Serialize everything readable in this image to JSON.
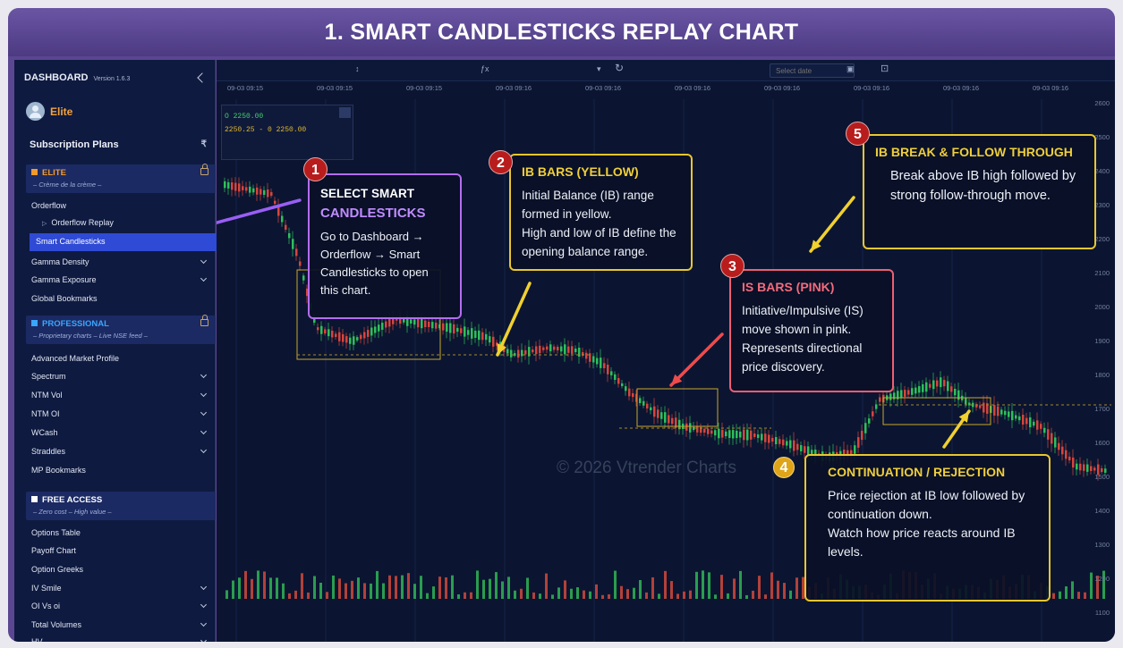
{
  "banner": {
    "title": "1. SMART CANDLESTICKS REPLAY CHART"
  },
  "sidebar": {
    "title": "DASHBOARD",
    "version": "Version 1.6.3",
    "user": "Elite",
    "subscription": "Subscription Plans",
    "sections": [
      {
        "title": "ELITE",
        "subtitle": "– Crème de la crème –",
        "color": "#f39a2b"
      },
      {
        "title": "PROFESSIONAL",
        "subtitle": "– Proprietary charts – Live NSE feed –",
        "color": "#3aa6ff"
      },
      {
        "title": "FREE ACCESS",
        "subtitle": "– Zero cost – High value –",
        "color": "#ffffff"
      }
    ],
    "elite_items": [
      "Orderflow",
      "Orderflow Replay",
      "Smart Candlesticks",
      "Gamma Density",
      "Gamma Exposure",
      "Global Bookmarks"
    ],
    "pro_items": [
      "Advanced Market Profile",
      "Spectrum",
      "NTM Vol",
      "NTM OI",
      "WCash",
      "Straddles",
      "MP Bookmarks"
    ],
    "free_items": [
      "Options Table",
      "Payoff Chart",
      "Option Greeks",
      "IV Smile",
      "OI Vs oi",
      "Total Volumes",
      "HV"
    ]
  },
  "toolbar": {
    "date_placeholder": "Select date"
  },
  "time_axis": [
    "09-03 09:15",
    "09-03 09:15",
    "09-03 09:15",
    "09-03 09:16",
    "09-03 09:16",
    "09-03 09:16",
    "09-03 09:16",
    "09-03 09:16",
    "09-03 09:16",
    "09-03 09:16"
  ],
  "price_axis": [
    "2600",
    "2500",
    "2400",
    "2300",
    "2200",
    "2100",
    "2000",
    "1900",
    "1800",
    "1700",
    "1600",
    "1500",
    "1400",
    "1300",
    "1200",
    "1100"
  ],
  "legend": {
    "line1": "O 2250.00",
    "line2": "2250.25 - 0 2250.00"
  },
  "watermark": "© 2026 Vtrender Charts",
  "callouts": [
    {
      "num": "1",
      "title_line1": "SELECT SMART",
      "title_line2": "CANDLESTICKS",
      "body": "Go to Dashboard → Orderflow → Smart Candlesticks to open this chart.",
      "color": "#b46df0"
    },
    {
      "num": "2",
      "title": "IB BARS (YELLOW)",
      "body": "Initial Balance (IB) range formed in yellow.\nHigh and low of IB define the opening balance range.",
      "color": "#e9c62e"
    },
    {
      "num": "3",
      "title": "IS BARS (PINK)",
      "body": "Initiative/Impulsive (IS) move shown in pink.\nRepresents directional price discovery.",
      "color": "#ee5f73"
    },
    {
      "num": "4",
      "title": "CONTINUATION / REJECTION",
      "body": "Price rejection at IB low followed by continuation down.\nWatch how price reacts around IB levels.",
      "color": "#e9c62e"
    },
    {
      "num": "5",
      "title": "IB BREAK & FOLLOW THROUGH",
      "body": "Break above IB high followed by strong follow-through move.",
      "color": "#e9c62e"
    }
  ]
}
